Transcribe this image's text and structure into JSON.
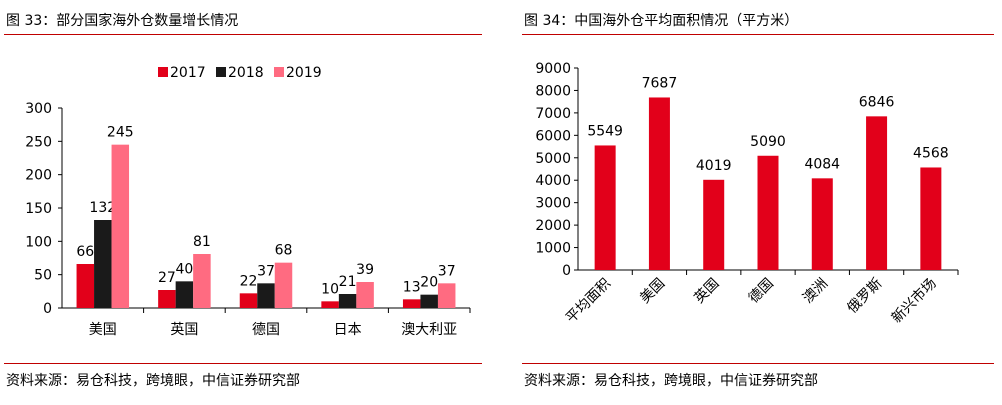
{
  "figures": [
    {
      "title": "图 33：部分国家海外仓数量增长情况",
      "source": "资料来源：易仓科技，跨境眼，中信证券研究部"
    },
    {
      "title": "图 34：中国海外仓平均面积情况（平方米）",
      "source": "资料来源：易仓科技，跨境眼，中信证券研究部"
    }
  ],
  "chart_data": [
    {
      "type": "bar",
      "title": "",
      "xlabel": "",
      "ylabel": "",
      "categories": [
        "美国",
        "英国",
        "德国",
        "日本",
        "澳大利亚"
      ],
      "series": [
        {
          "name": "2017",
          "values": [
            66,
            27,
            22,
            10,
            13
          ],
          "color": "#e2001a"
        },
        {
          "name": "2018",
          "values": [
            132,
            40,
            37,
            21,
            20
          ],
          "color": "#1a1a1a"
        },
        {
          "name": "2019",
          "values": [
            245,
            81,
            68,
            39,
            37
          ],
          "color": "#ff6b81"
        }
      ],
      "yticks": [
        0,
        50,
        100,
        150,
        200,
        250,
        300
      ],
      "ylim": [
        0,
        300
      ],
      "grid": false,
      "legend": "top-right"
    },
    {
      "type": "bar",
      "title": "",
      "xlabel": "",
      "ylabel": "",
      "categories": [
        "平均面积",
        "美国",
        "英国",
        "德国",
        "澳洲",
        "俄罗斯",
        "新兴市场"
      ],
      "values": [
        5549,
        7687,
        4019,
        5090,
        4084,
        6846,
        4568
      ],
      "color": "#e2001a",
      "yticks": [
        0,
        1000,
        2000,
        3000,
        4000,
        5000,
        6000,
        7000,
        8000,
        9000
      ],
      "ylim": [
        0,
        9000
      ],
      "grid": false,
      "legend": "none"
    }
  ]
}
